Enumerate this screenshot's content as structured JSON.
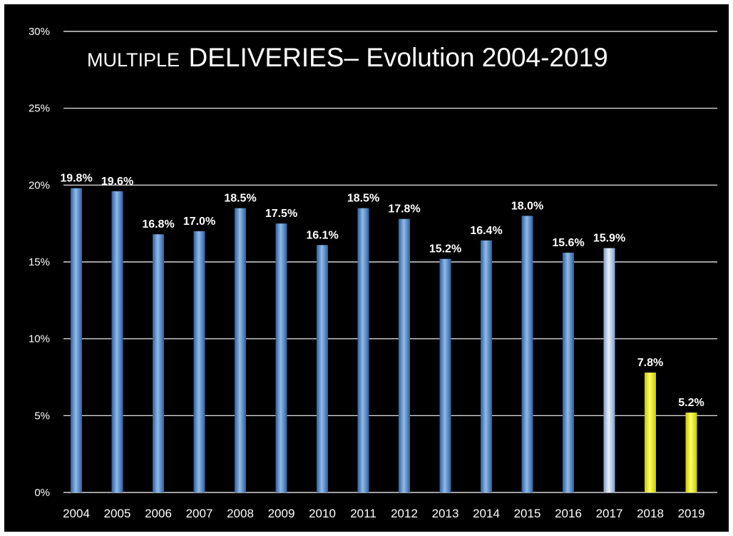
{
  "chart_data": {
    "type": "bar",
    "title_prefix": "MULTIPLE",
    "title_main": "DELIVERIES– Evolution 2004-2019",
    "xlabel": "",
    "ylabel": "",
    "categories": [
      "2004",
      "2005",
      "2006",
      "2007",
      "2008",
      "2009",
      "2010",
      "2011",
      "2012",
      "2013",
      "2014",
      "2015",
      "2016",
      "2017",
      "2018",
      "2019"
    ],
    "values": [
      19.8,
      19.6,
      16.8,
      17.0,
      18.5,
      17.5,
      16.1,
      18.5,
      17.8,
      15.2,
      16.4,
      18.0,
      15.6,
      15.9,
      7.8,
      5.2
    ],
    "value_labels": [
      "19.8%",
      "19.6%",
      "16.8%",
      "17.0%",
      "18.5%",
      "17.5%",
      "16.1%",
      "18.5%",
      "17.8%",
      "15.2%",
      "16.4%",
      "18.0%",
      "15.6%",
      "15.9%",
      "7.8%",
      "5.2%"
    ],
    "y_ticks": [
      0,
      5,
      10,
      15,
      20,
      25,
      30
    ],
    "y_tick_labels": [
      "0%",
      "5%",
      "10%",
      "15%",
      "20%",
      "25%",
      "30%"
    ],
    "ylim": [
      0,
      30
    ],
    "grid": true,
    "legend": "none",
    "bar_styles": [
      "blue",
      "blue",
      "blue",
      "blue",
      "blue",
      "blue",
      "blue",
      "blue",
      "blue",
      "blue",
      "blue",
      "blue",
      "blue",
      "light-blue",
      "yellow",
      "yellow"
    ],
    "colors": {
      "background": "#000000",
      "blue": "#5b9bd5",
      "light_blue": "#c9d9ee",
      "yellow": "#ffff00",
      "text": "#ffffff",
      "grid": "#ffffff"
    }
  }
}
